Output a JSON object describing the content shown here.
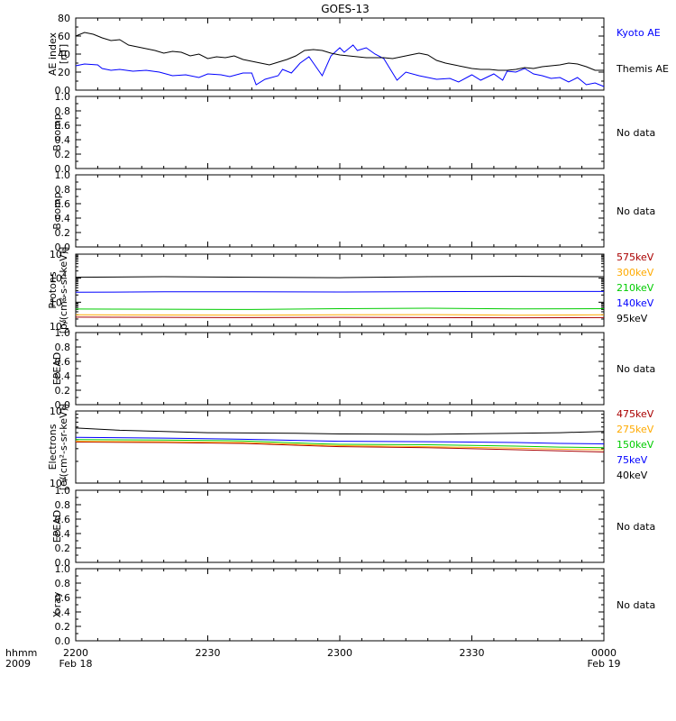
{
  "title": "GOES-13",
  "x_axis": {
    "row_label_1": "hhmm",
    "row_label_2": "2009",
    "ticks": [
      {
        "label": "2200",
        "date": "Feb 18",
        "minutes": 0
      },
      {
        "label": "2230",
        "date": "",
        "minutes": 30
      },
      {
        "label": "2300",
        "date": "",
        "minutes": 60
      },
      {
        "label": "2330",
        "date": "",
        "minutes": 90
      },
      {
        "label": "0000",
        "date": "Feb 19",
        "minutes": 120
      }
    ],
    "range_minutes": [
      0,
      120
    ]
  },
  "chart_data": [
    {
      "id": "ae",
      "type": "line",
      "ylabel_1": "AE index",
      "ylabel_2": "[nT]",
      "yscale": "linear",
      "ylim": [
        0,
        80
      ],
      "ticks": [
        0,
        20,
        40,
        60,
        80
      ],
      "series": [
        {
          "name": "Kyoto AE",
          "color": "#0000ff",
          "x": [
            0,
            2,
            5,
            6,
            8,
            10,
            13,
            16,
            19,
            22,
            25,
            28,
            30,
            33,
            35,
            38,
            40,
            41,
            43,
            46,
            47,
            49,
            51,
            53,
            54,
            56,
            58,
            60,
            61,
            63,
            64,
            66,
            68,
            70,
            73,
            75,
            78,
            82,
            85,
            87,
            90,
            92,
            95,
            97,
            98,
            100,
            102,
            104,
            106,
            108,
            110,
            112,
            114,
            116,
            118,
            120
          ],
          "y": [
            27,
            29,
            28,
            24,
            22,
            23,
            21,
            22,
            20,
            16,
            17,
            14,
            18,
            17,
            15,
            19,
            19,
            6,
            12,
            16,
            23,
            19,
            30,
            37,
            30,
            16,
            38,
            47,
            42,
            50,
            44,
            47,
            40,
            35,
            11,
            20,
            16,
            12,
            13,
            9,
            17,
            11,
            18,
            11,
            21,
            20,
            24,
            18,
            16,
            13,
            14,
            9,
            14,
            6,
            8,
            4
          ]
        },
        {
          "name": "Themis AE",
          "color": "#000000",
          "x": [
            0,
            2,
            4,
            6,
            8,
            10,
            12,
            14,
            16,
            18,
            20,
            22,
            24,
            26,
            28,
            30,
            32,
            34,
            36,
            38,
            40,
            42,
            44,
            46,
            48,
            50,
            52,
            54,
            56,
            58,
            60,
            62,
            64,
            66,
            68,
            70,
            72,
            74,
            76,
            78,
            80,
            82,
            84,
            86,
            88,
            90,
            92,
            94,
            96,
            98,
            100,
            102,
            104,
            106,
            108,
            110,
            112,
            114,
            116,
            118,
            120
          ],
          "y": [
            60,
            64,
            62,
            58,
            55,
            56,
            50,
            48,
            46,
            44,
            41,
            43,
            42,
            38,
            40,
            35,
            37,
            36,
            38,
            34,
            32,
            30,
            28,
            31,
            34,
            38,
            44,
            45,
            44,
            41,
            39,
            38,
            37,
            36,
            36,
            36,
            35,
            37,
            39,
            41,
            39,
            33,
            30,
            28,
            26,
            24,
            23,
            23,
            22,
            22,
            23,
            25,
            24,
            26,
            27,
            28,
            30,
            29,
            26,
            22,
            22
          ]
        }
      ]
    },
    {
      "id": "bcomp1",
      "type": "line",
      "ylabel_1": "B comp",
      "yscale": "linear",
      "ylim": [
        0,
        1
      ],
      "ticks": [
        0,
        0.2,
        0.4,
        0.6,
        0.8,
        1.0
      ],
      "status": "No data",
      "series": []
    },
    {
      "id": "bcomp2",
      "type": "line",
      "ylabel_1": "B comp",
      "yscale": "linear",
      "ylim": [
        0,
        1
      ],
      "ticks": [
        0,
        0.2,
        0.4,
        0.6,
        0.8,
        1.0
      ],
      "status": "No data",
      "series": []
    },
    {
      "id": "protons",
      "type": "line",
      "ylabel_1": "Protons",
      "ylabel_2": "[p/(cm²-s-sr-keV)]",
      "yscale": "log",
      "ylim": [
        100,
        100000
      ],
      "ticks": [
        100,
        1000,
        10000,
        100000
      ],
      "series": [
        {
          "name": "575keV",
          "color": "#aa0000",
          "x": [
            0,
            20,
            40,
            60,
            80,
            100,
            120
          ],
          "y": [
            240,
            235,
            230,
            235,
            230,
            225,
            230
          ]
        },
        {
          "name": "300keV",
          "color": "#ffaa00",
          "x": [
            0,
            20,
            40,
            60,
            80,
            100,
            120
          ],
          "y": [
            300,
            295,
            290,
            300,
            305,
            290,
            300
          ]
        },
        {
          "name": "210keV",
          "color": "#00cc00",
          "x": [
            0,
            20,
            40,
            60,
            80,
            100,
            120
          ],
          "y": [
            520,
            510,
            500,
            540,
            560,
            530,
            540
          ]
        },
        {
          "name": "140keV",
          "color": "#0000ff",
          "x": [
            0,
            20,
            40,
            60,
            80,
            100,
            120
          ],
          "y": [
            2600,
            2700,
            2700,
            2650,
            2750,
            2800,
            2800
          ]
        },
        {
          "name": "95keV",
          "color": "#000000",
          "x": [
            0,
            20,
            40,
            60,
            80,
            100,
            120
          ],
          "y": [
            11000,
            11500,
            11000,
            10500,
            11500,
            12000,
            11500
          ]
        }
      ]
    },
    {
      "id": "epead1",
      "type": "line",
      "ylabel_1": "EPEAD",
      "yscale": "linear",
      "ylim": [
        0,
        1
      ],
      "ticks": [
        0,
        0.2,
        0.4,
        0.6,
        0.8,
        1.0
      ],
      "status": "No data",
      "series": []
    },
    {
      "id": "electrons",
      "type": "line",
      "ylabel_1": "Electrons",
      "ylabel_2": "[e/(cm²-s-sr-keV)]",
      "yscale": "log",
      "ylim": [
        10000,
        100000
      ],
      "ticks": [
        10000,
        100000
      ],
      "series": [
        {
          "name": "475keV",
          "color": "#aa0000",
          "x": [
            0,
            20,
            38,
            56,
            60,
            80,
            100,
            110,
            120
          ],
          "y": [
            37000,
            36500,
            35500,
            32500,
            32000,
            31000,
            29000,
            28000,
            27000
          ]
        },
        {
          "name": "275keV",
          "color": "#ffaa00",
          "x": [
            0,
            20,
            38,
            56,
            60,
            80,
            100,
            110,
            120
          ],
          "y": [
            38000,
            37500,
            36500,
            33500,
            33000,
            32000,
            30500,
            29500,
            29000
          ]
        },
        {
          "name": "150keV",
          "color": "#00cc00",
          "x": [
            0,
            20,
            38,
            56,
            60,
            80,
            100,
            110,
            120
          ],
          "y": [
            40000,
            39500,
            38500,
            35000,
            34500,
            34000,
            32500,
            31500,
            31000
          ]
        },
        {
          "name": "75keV",
          "color": "#0000ff",
          "x": [
            0,
            20,
            38,
            56,
            60,
            80,
            100,
            110,
            120
          ],
          "y": [
            43000,
            42000,
            40500,
            38500,
            38000,
            37500,
            36500,
            35500,
            35000
          ]
        },
        {
          "name": "40keV",
          "color": "#000000",
          "x": [
            0,
            10,
            30,
            50,
            60,
            80,
            100,
            110,
            120
          ],
          "y": [
            58000,
            54000,
            50000,
            49000,
            48000,
            47500,
            49000,
            50000,
            52000
          ]
        }
      ]
    },
    {
      "id": "epead2",
      "type": "line",
      "ylabel_1": "EPEAD",
      "yscale": "linear",
      "ylim": [
        0,
        1
      ],
      "ticks": [
        0,
        0.2,
        0.4,
        0.6,
        0.8,
        1.0
      ],
      "status": "No data",
      "series": []
    },
    {
      "id": "xray",
      "type": "line",
      "ylabel_1": "X-ray",
      "yscale": "linear",
      "ylim": [
        0,
        1
      ],
      "ticks": [
        0,
        0.2,
        0.4,
        0.6,
        0.8,
        1.0
      ],
      "status": "No data",
      "series": []
    }
  ]
}
